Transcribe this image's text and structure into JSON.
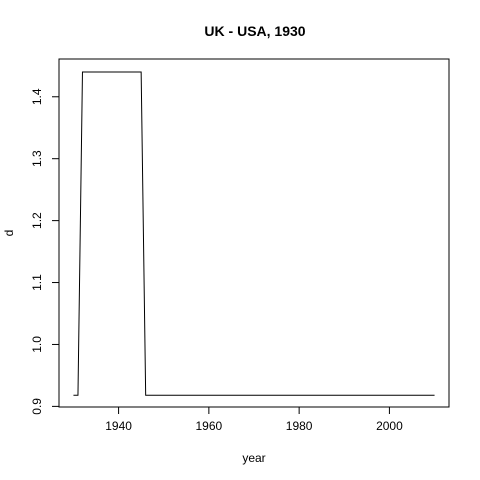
{
  "chart_data": {
    "type": "line",
    "title": "UK - USA, 1930",
    "xlabel": "year",
    "ylabel": "d",
    "xlim": [
      1926.8,
      2013.2
    ],
    "ylim": [
      0.899,
      1.461
    ],
    "xticks": [
      1940,
      1960,
      1980,
      2000
    ],
    "yticks": [
      0.9,
      1.0,
      1.1,
      1.2,
      1.3,
      1.4
    ],
    "ytick_labels": [
      "0.9",
      "1.0",
      "1.1",
      "1.2",
      "1.3",
      "1.4"
    ],
    "grid": false,
    "series": [
      {
        "x": [
          1930,
          1931,
          1932,
          1933,
          1934,
          1935,
          1936,
          1937,
          1938,
          1939,
          1940,
          1941,
          1942,
          1943,
          1944,
          1945,
          1946,
          1947,
          1950,
          1960,
          1970,
          1980,
          1990,
          2000,
          2010
        ],
        "y": [
          0.918,
          0.918,
          1.44,
          1.44,
          1.44,
          1.44,
          1.44,
          1.44,
          1.44,
          1.44,
          1.44,
          1.44,
          1.44,
          1.44,
          1.44,
          1.44,
          0.918,
          0.918,
          0.918,
          0.918,
          0.918,
          0.918,
          0.918,
          0.918,
          0.918
        ]
      }
    ]
  }
}
